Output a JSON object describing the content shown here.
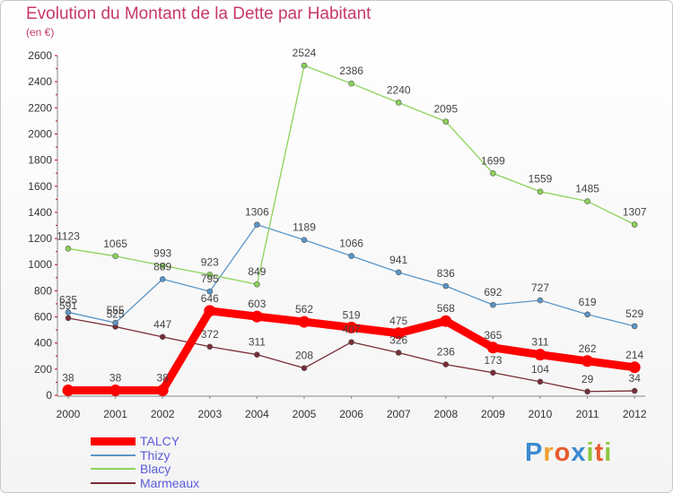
{
  "title": "Evolution du Montant de la Dette par Habitant",
  "subtitle": "(en €)",
  "logo": {
    "letters": [
      "P",
      "r",
      "o",
      "x",
      "i",
      "t",
      "i"
    ],
    "colors": [
      "#3c8ad2",
      "#f0a030",
      "#e85a30",
      "#3c8ad2",
      "#8cc83c",
      "#e85a30",
      "#8cc83c"
    ]
  },
  "chart_data": {
    "type": "line",
    "title": "Evolution du Montant de la Dette par Habitant",
    "subtitle": "(en €)",
    "x": [
      "2000",
      "2001",
      "2002",
      "2003",
      "2004",
      "2005",
      "2006",
      "2007",
      "2008",
      "2009",
      "2010",
      "2011",
      "2012"
    ],
    "ylim": [
      0,
      2600
    ],
    "yticks": [
      0,
      200,
      400,
      600,
      800,
      1000,
      1200,
      1400,
      1600,
      1800,
      2000,
      2200,
      2400,
      2600
    ],
    "grid": false,
    "legend_position": "bottom-left",
    "series": [
      {
        "name": "TALCY",
        "color": "#ff0000",
        "values": [
          38,
          38,
          38,
          646,
          603,
          562,
          519,
          475,
          568,
          365,
          311,
          262,
          214
        ]
      },
      {
        "name": "Thizy",
        "color": "#5a96c8",
        "values": [
          635,
          555,
          889,
          795,
          1306,
          1189,
          1066,
          941,
          836,
          692,
          727,
          619,
          529
        ]
      },
      {
        "name": "Blacy",
        "color": "#8cd25a",
        "values": [
          1123,
          1065,
          993,
          923,
          849,
          2524,
          2386,
          2240,
          2095,
          1699,
          1559,
          1485,
          1307
        ]
      },
      {
        "name": "Marmeaux",
        "color": "#782d37",
        "values": [
          591,
          525,
          447,
          372,
          311,
          208,
          407,
          326,
          236,
          173,
          104,
          29,
          34
        ]
      }
    ]
  }
}
